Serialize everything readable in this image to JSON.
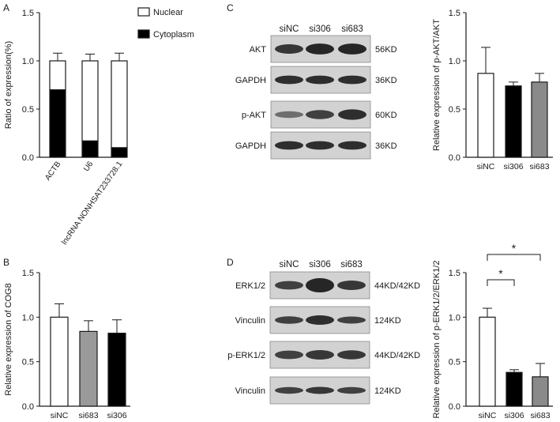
{
  "panels": {
    "A": {
      "letter": "A"
    },
    "B": {
      "letter": "B"
    },
    "C": {
      "letter": "C",
      "lanes": [
        "siNC",
        "si306",
        "si683"
      ],
      "blots": [
        {
          "label": "AKT",
          "size": "56KD"
        },
        {
          "label": "GAPDH",
          "size": "36KD"
        },
        {
          "label": "p-AKT",
          "size": "60KD"
        },
        {
          "label": "GAPDH",
          "size": "36KD"
        }
      ]
    },
    "D": {
      "letter": "D",
      "lanes": [
        "siNC",
        "si306",
        "si683"
      ],
      "blots": [
        {
          "label": "ERK1/2",
          "size": "44KD/42KD"
        },
        {
          "label": "Vinculin",
          "size": "124KD"
        },
        {
          "label": "p-ERK1/2",
          "size": "44KD/42KD"
        },
        {
          "label": "Vinculin",
          "size": "124KD"
        }
      ]
    }
  },
  "chart_data": [
    {
      "id": "A",
      "type": "bar",
      "stacked": true,
      "title": "",
      "ylabel": "Ratio of expression(%)",
      "xlabel": "",
      "ylim": [
        0,
        1.5
      ],
      "yticks": [
        "0.0",
        "0.5",
        "1.0",
        "1.5"
      ],
      "categories": [
        "ACTB",
        "U6",
        "lncRNA NONHSAT233728.1"
      ],
      "legend": {
        "placement": "top-right",
        "entries": [
          "Nuclear",
          "Cytoplasm"
        ]
      },
      "series": [
        {
          "name": "Cytoplasm",
          "color": "#000000",
          "values": [
            0.7,
            0.17,
            0.1
          ],
          "errors": [
            0.09,
            0.07,
            0.08
          ]
        },
        {
          "name": "Nuclear",
          "color": "#ffffff",
          "values": [
            0.3,
            0.83,
            0.9
          ],
          "errors": [
            0.08,
            0.07,
            0.08
          ]
        }
      ]
    },
    {
      "id": "B",
      "type": "bar",
      "title": "",
      "ylabel": "Relative expression of COG8",
      "xlabel": "",
      "ylim": [
        0,
        1.5
      ],
      "yticks": [
        "0.0",
        "0.5",
        "1.0",
        "1.5"
      ],
      "categories": [
        "siNC",
        "si683",
        "si306"
      ],
      "values": [
        1.0,
        0.84,
        0.82
      ],
      "errors": [
        0.15,
        0.12,
        0.15
      ],
      "colors": [
        "#ffffff",
        "#9a9a9a",
        "#000000"
      ]
    },
    {
      "id": "C",
      "type": "bar",
      "title": "",
      "ylabel": "Relative expression of p-AKT/AKT",
      "xlabel": "",
      "ylim": [
        0,
        1.5
      ],
      "yticks": [
        "0.0",
        "0.5",
        "1.0",
        "1.5"
      ],
      "categories": [
        "siNC",
        "si306",
        "si683"
      ],
      "values": [
        0.87,
        0.74,
        0.78
      ],
      "errors": [
        0.27,
        0.04,
        0.09
      ],
      "colors": [
        "#ffffff",
        "#000000",
        "#8a8a8a"
      ]
    },
    {
      "id": "D",
      "type": "bar",
      "title": "",
      "ylabel": "Relative expression of p-ERK1/2/ERK1/2",
      "xlabel": "",
      "ylim": [
        0,
        1.5
      ],
      "yticks": [
        "0.0",
        "0.5",
        "1.0",
        "1.5"
      ],
      "categories": [
        "siNC",
        "si306",
        "si683"
      ],
      "values": [
        1.0,
        0.38,
        0.33
      ],
      "errors": [
        0.1,
        0.03,
        0.15
      ],
      "colors": [
        "#ffffff",
        "#000000",
        "#8a8a8a"
      ],
      "significance": [
        {
          "from": "siNC",
          "to": "si306",
          "label": "*"
        },
        {
          "from": "siNC",
          "to": "si683",
          "label": "*"
        }
      ]
    }
  ]
}
